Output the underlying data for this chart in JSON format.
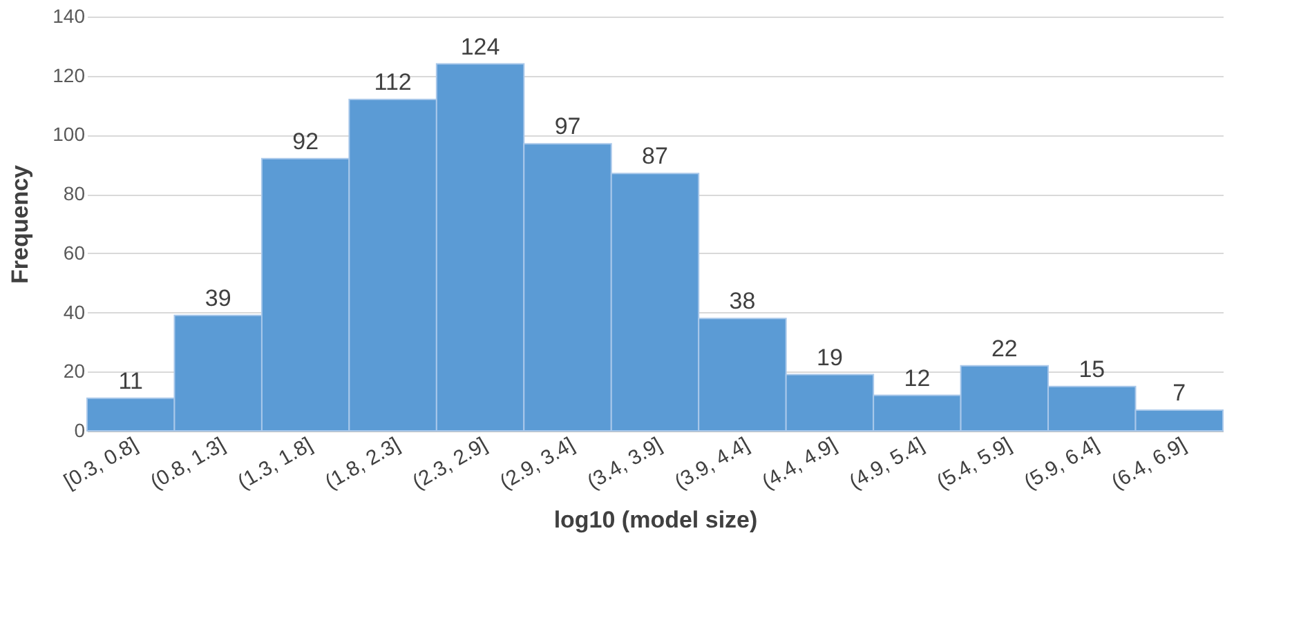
{
  "chart_data": {
    "type": "bar",
    "xlabel": "log10 (model size)",
    "ylabel": "Frequency",
    "categories": [
      "[0.3, 0.8]",
      "(0.8, 1.3]",
      "(1.3, 1.8]",
      "(1.8, 2.3]",
      "(2.3, 2.9]",
      "(2.9, 3.4]",
      "(3.4, 3.9]",
      "(3.9, 4.4]",
      "(4.4, 4.9]",
      "(4.9, 5.4]",
      "(5.4, 5.9]",
      "(5.9, 6.4]",
      "(6.4, 6.9]"
    ],
    "values": [
      11,
      39,
      92,
      112,
      124,
      97,
      87,
      38,
      19,
      12,
      22,
      15,
      7
    ],
    "color": "#5b9bd5",
    "ylim": [
      0,
      140
    ],
    "yticks": [
      0,
      20,
      40,
      60,
      80,
      100,
      120,
      140
    ],
    "grid": "y",
    "data_labels": true
  }
}
